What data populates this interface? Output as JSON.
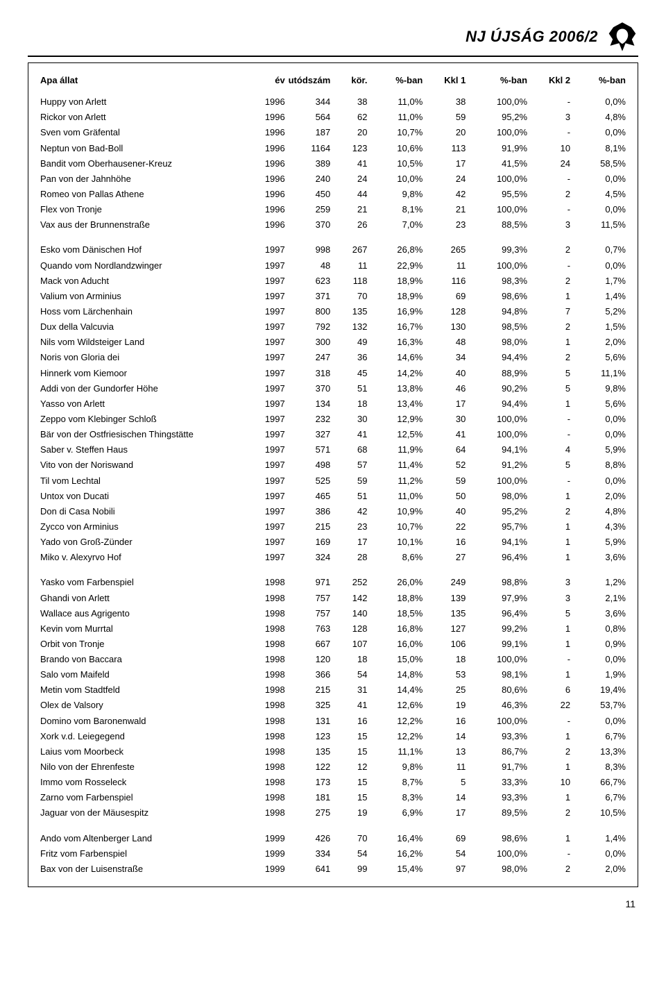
{
  "publication_title": "NJ ÚJSÁG 2006/2",
  "page_number": "11",
  "columns": [
    "Apa állat",
    "év",
    "utódszám",
    "kör.",
    "%-ban",
    "Kkl 1",
    "%-ban",
    "Kkl 2",
    "%-ban"
  ],
  "groups": [
    {
      "rows": [
        [
          "Huppy von Arlett",
          "1996",
          "344",
          "38",
          "11,0%",
          "38",
          "100,0%",
          "-",
          "0,0%"
        ],
        [
          "Rickor von Arlett",
          "1996",
          "564",
          "62",
          "11,0%",
          "59",
          "95,2%",
          "3",
          "4,8%"
        ],
        [
          "Sven vom Gräfental",
          "1996",
          "187",
          "20",
          "10,7%",
          "20",
          "100,0%",
          "-",
          "0,0%"
        ],
        [
          "Neptun von Bad-Boll",
          "1996",
          "1164",
          "123",
          "10,6%",
          "113",
          "91,9%",
          "10",
          "8,1%"
        ],
        [
          "Bandit vom Oberhausener-Kreuz",
          "1996",
          "389",
          "41",
          "10,5%",
          "17",
          "41,5%",
          "24",
          "58,5%"
        ],
        [
          "Pan von der Jahnhöhe",
          "1996",
          "240",
          "24",
          "10,0%",
          "24",
          "100,0%",
          "-",
          "0,0%"
        ],
        [
          "Romeo von Pallas Athene",
          "1996",
          "450",
          "44",
          "9,8%",
          "42",
          "95,5%",
          "2",
          "4,5%"
        ],
        [
          "Flex von Tronje",
          "1996",
          "259",
          "21",
          "8,1%",
          "21",
          "100,0%",
          "-",
          "0,0%"
        ],
        [
          "Vax aus der Brunnenstraße",
          "1996",
          "370",
          "26",
          "7,0%",
          "23",
          "88,5%",
          "3",
          "11,5%"
        ]
      ]
    },
    {
      "rows": [
        [
          "Esko vom Dänischen Hof",
          "1997",
          "998",
          "267",
          "26,8%",
          "265",
          "99,3%",
          "2",
          "0,7%"
        ],
        [
          "Quando vom Nordlandzwinger",
          "1997",
          "48",
          "11",
          "22,9%",
          "11",
          "100,0%",
          "-",
          "0,0%"
        ],
        [
          "Mack von Aducht",
          "1997",
          "623",
          "118",
          "18,9%",
          "116",
          "98,3%",
          "2",
          "1,7%"
        ],
        [
          "Valium von Arminius",
          "1997",
          "371",
          "70",
          "18,9%",
          "69",
          "98,6%",
          "1",
          "1,4%"
        ],
        [
          "Hoss vom Lärchenhain",
          "1997",
          "800",
          "135",
          "16,9%",
          "128",
          "94,8%",
          "7",
          "5,2%"
        ],
        [
          "Dux della Valcuvia",
          "1997",
          "792",
          "132",
          "16,7%",
          "130",
          "98,5%",
          "2",
          "1,5%"
        ],
        [
          "Nils vom Wildsteiger Land",
          "1997",
          "300",
          "49",
          "16,3%",
          "48",
          "98,0%",
          "1",
          "2,0%"
        ],
        [
          "Noris von Gloria dei",
          "1997",
          "247",
          "36",
          "14,6%",
          "34",
          "94,4%",
          "2",
          "5,6%"
        ],
        [
          "Hinnerk vom Kiemoor",
          "1997",
          "318",
          "45",
          "14,2%",
          "40",
          "88,9%",
          "5",
          "11,1%"
        ],
        [
          "Addi von der Gundorfer Höhe",
          "1997",
          "370",
          "51",
          "13,8%",
          "46",
          "90,2%",
          "5",
          "9,8%"
        ],
        [
          "Yasso von Arlett",
          "1997",
          "134",
          "18",
          "13,4%",
          "17",
          "94,4%",
          "1",
          "5,6%"
        ],
        [
          "Zeppo vom Klebinger Schloß",
          "1997",
          "232",
          "30",
          "12,9%",
          "30",
          "100,0%",
          "-",
          "0,0%"
        ],
        [
          "Bär von der Ostfriesischen Thingstätte",
          "1997",
          "327",
          "41",
          "12,5%",
          "41",
          "100,0%",
          "-",
          "0,0%"
        ],
        [
          "Saber v. Steffen Haus",
          "1997",
          "571",
          "68",
          "11,9%",
          "64",
          "94,1%",
          "4",
          "5,9%"
        ],
        [
          "Vito von der Noriswand",
          "1997",
          "498",
          "57",
          "11,4%",
          "52",
          "91,2%",
          "5",
          "8,8%"
        ],
        [
          "Til vom Lechtal",
          "1997",
          "525",
          "59",
          "11,2%",
          "59",
          "100,0%",
          "-",
          "0,0%"
        ],
        [
          "Untox von Ducati",
          "1997",
          "465",
          "51",
          "11,0%",
          "50",
          "98,0%",
          "1",
          "2,0%"
        ],
        [
          "Don di Casa Nobili",
          "1997",
          "386",
          "42",
          "10,9%",
          "40",
          "95,2%",
          "2",
          "4,8%"
        ],
        [
          "Zycco von Arminius",
          "1997",
          "215",
          "23",
          "10,7%",
          "22",
          "95,7%",
          "1",
          "4,3%"
        ],
        [
          "Yado von Groß-Zünder",
          "1997",
          "169",
          "17",
          "10,1%",
          "16",
          "94,1%",
          "1",
          "5,9%"
        ],
        [
          "Miko v. Alexyrvo Hof",
          "1997",
          "324",
          "28",
          "8,6%",
          "27",
          "96,4%",
          "1",
          "3,6%"
        ]
      ]
    },
    {
      "rows": [
        [
          "Yasko vom Farbenspiel",
          "1998",
          "971",
          "252",
          "26,0%",
          "249",
          "98,8%",
          "3",
          "1,2%"
        ],
        [
          "Ghandi von Arlett",
          "1998",
          "757",
          "142",
          "18,8%",
          "139",
          "97,9%",
          "3",
          "2,1%"
        ],
        [
          "Wallace aus Agrigento",
          "1998",
          "757",
          "140",
          "18,5%",
          "135",
          "96,4%",
          "5",
          "3,6%"
        ],
        [
          "Kevin vom Murrtal",
          "1998",
          "763",
          "128",
          "16,8%",
          "127",
          "99,2%",
          "1",
          "0,8%"
        ],
        [
          "Orbit von Tronje",
          "1998",
          "667",
          "107",
          "16,0%",
          "106",
          "99,1%",
          "1",
          "0,9%"
        ],
        [
          "Brando von Baccara",
          "1998",
          "120",
          "18",
          "15,0%",
          "18",
          "100,0%",
          "-",
          "0,0%"
        ],
        [
          "Salo vom Maifeld",
          "1998",
          "366",
          "54",
          "14,8%",
          "53",
          "98,1%",
          "1",
          "1,9%"
        ],
        [
          "Metin vom Stadtfeld",
          "1998",
          "215",
          "31",
          "14,4%",
          "25",
          "80,6%",
          "6",
          "19,4%"
        ],
        [
          "Olex de Valsory",
          "1998",
          "325",
          "41",
          "12,6%",
          "19",
          "46,3%",
          "22",
          "53,7%"
        ],
        [
          "Domino vom Baronenwald",
          "1998",
          "131",
          "16",
          "12,2%",
          "16",
          "100,0%",
          "-",
          "0,0%"
        ],
        [
          "Xork v.d. Leiegegend",
          "1998",
          "123",
          "15",
          "12,2%",
          "14",
          "93,3%",
          "1",
          "6,7%"
        ],
        [
          "Laius vom Moorbeck",
          "1998",
          "135",
          "15",
          "11,1%",
          "13",
          "86,7%",
          "2",
          "13,3%"
        ],
        [
          "Nilo von der Ehrenfeste",
          "1998",
          "122",
          "12",
          "9,8%",
          "11",
          "91,7%",
          "1",
          "8,3%"
        ],
        [
          "Immo vom Rosseleck",
          "1998",
          "173",
          "15",
          "8,7%",
          "5",
          "33,3%",
          "10",
          "66,7%"
        ],
        [
          "Zarno vom Farbenspiel",
          "1998",
          "181",
          "15",
          "8,3%",
          "14",
          "93,3%",
          "1",
          "6,7%"
        ],
        [
          "Jaguar von der Mäusespitz",
          "1998",
          "275",
          "19",
          "6,9%",
          "17",
          "89,5%",
          "2",
          "10,5%"
        ]
      ]
    },
    {
      "rows": [
        [
          "Ando vom Altenberger Land",
          "1999",
          "426",
          "70",
          "16,4%",
          "69",
          "98,6%",
          "1",
          "1,4%"
        ],
        [
          "Fritz vom Farbenspiel",
          "1999",
          "334",
          "54",
          "16,2%",
          "54",
          "100,0%",
          "-",
          "0,0%"
        ],
        [
          "Bax von der Luisenstraße",
          "1999",
          "641",
          "99",
          "15,4%",
          "97",
          "98,0%",
          "2",
          "2,0%"
        ]
      ]
    }
  ]
}
